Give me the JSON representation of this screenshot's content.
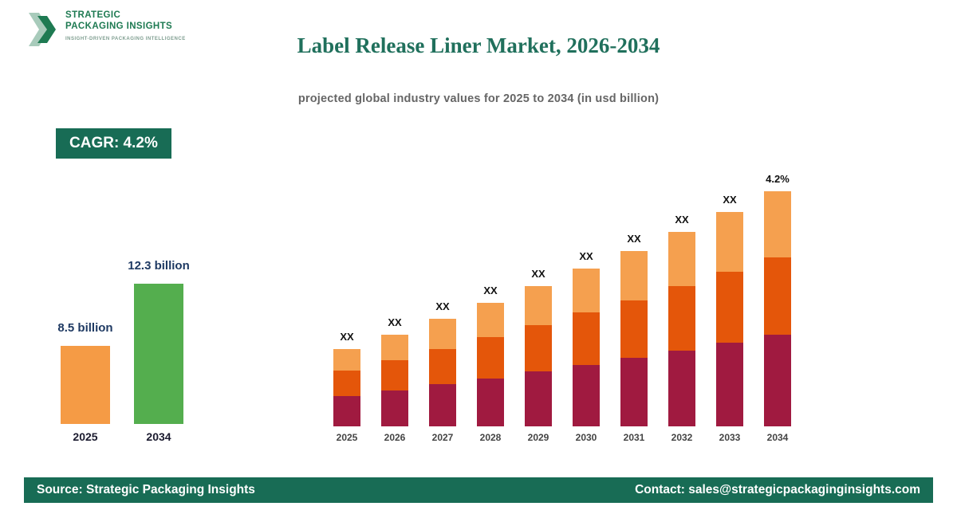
{
  "logo": {
    "line1": "STRATEGIC",
    "line2": "PACKAGING INSIGHTS",
    "tagline": "INSIGHT-DRIVEN PACKAGING INTELLIGENCE"
  },
  "header": {
    "title": "Label Release Liner Market, 2026-2034",
    "subtitle": "projected global industry values for 2025 to 2034 (in usd billion)"
  },
  "cagr": {
    "label": "CAGR: 4.2%"
  },
  "chart_data": [
    {
      "type": "bar",
      "title": "2025 vs 2034 market size summary",
      "categories": [
        "2025",
        "2034"
      ],
      "values": [
        8.5,
        12.3
      ],
      "value_labels": [
        "8.5 billion",
        "12.3 billion"
      ],
      "colors": [
        "#F59B45",
        "#54AE4E"
      ],
      "unit": "usd billion",
      "grid": false,
      "legend": "none"
    },
    {
      "type": "bar",
      "stacked": true,
      "title": "Label Release Liner Market projected values 2025-2034",
      "categories": [
        "2025",
        "2026",
        "2027",
        "2028",
        "2029",
        "2030",
        "2031",
        "2032",
        "2033",
        "2034"
      ],
      "total_values": [
        8.5,
        8.86,
        9.23,
        9.62,
        10.02,
        10.44,
        10.88,
        11.34,
        11.81,
        12.31
      ],
      "series": [
        {
          "name": "segment-bottom",
          "color": "#A01A40",
          "fraction": 0.39
        },
        {
          "name": "segment-middle",
          "color": "#E4560A",
          "fraction": 0.33
        },
        {
          "name": "segment-top",
          "color": "#F5A04F",
          "fraction": 0.28
        }
      ],
      "bar_labels": [
        "XX",
        "XX",
        "XX",
        "XX",
        "XX",
        "XX",
        "XX",
        "XX",
        "XX",
        "4.2%"
      ],
      "cagr": "4.2%",
      "unit": "usd billion",
      "xlabel": "",
      "ylabel": "",
      "grid": false,
      "legend": "none"
    }
  ],
  "footer": {
    "source": "Source: Strategic Packaging Insights",
    "contact": "Contact: sales@strategicpackaginginsights.com"
  },
  "colors": {
    "brand_green": "#186C55",
    "logo_green": "#1E7A52",
    "title_green": "#20705C",
    "label_navy": "#1F3A63"
  }
}
